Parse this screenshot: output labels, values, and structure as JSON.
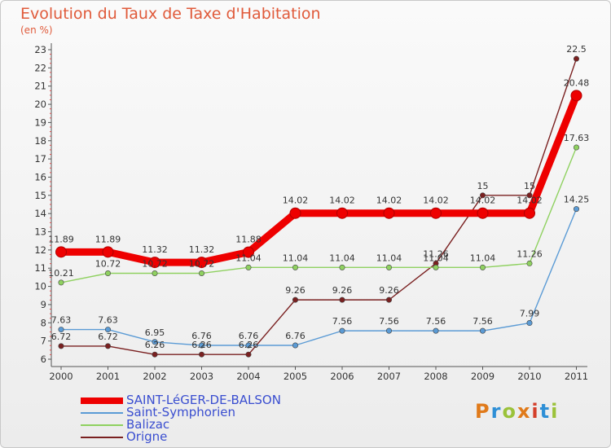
{
  "header": {
    "title": "Evolution du Taux de Taxe d'Habitation",
    "unit": "(en %)"
  },
  "logo": {
    "text": "Proxiti",
    "colors": [
      "#e07a1a",
      "#2e8fd6",
      "#9bc23a",
      "#e07a1a",
      "#d43f2a",
      "#2e8fd6",
      "#9bc23a"
    ]
  },
  "chart_data": {
    "type": "line",
    "title": "Evolution du Taux de Taxe d'Habitation",
    "ylabel": "(en %)",
    "xlabel": "",
    "x": [
      "2000",
      "2001",
      "2002",
      "2003",
      "2004",
      "2005",
      "2006",
      "2007",
      "2008",
      "2009",
      "2010",
      "2011"
    ],
    "ylim": [
      6,
      23
    ],
    "yticks": [
      6,
      7,
      8,
      9,
      10,
      11,
      12,
      13,
      14,
      15,
      16,
      17,
      18,
      19,
      20,
      21,
      22,
      23
    ],
    "grid": false,
    "legend": "bottom-left",
    "series": [
      {
        "name": "Origne",
        "color": "#7a2020",
        "highlight": false,
        "values": [
          6.72,
          6.72,
          6.26,
          6.26,
          6.26,
          9.26,
          9.26,
          9.26,
          11.26,
          15,
          15,
          22.5
        ],
        "labels": [
          "6.72",
          "6.72",
          "6.26",
          "6.26",
          "6.26",
          "9.26",
          "9.26",
          "9.26",
          "11.26",
          "15",
          "15",
          "22.5"
        ]
      },
      {
        "name": "Balizac",
        "color": "#8fd160",
        "highlight": false,
        "values": [
          10.21,
          10.72,
          10.72,
          10.72,
          11.04,
          11.04,
          11.04,
          11.04,
          11.04,
          11.04,
          11.26,
          17.63
        ],
        "labels": [
          "10.21",
          "10.72",
          "10.72",
          "10.72",
          "11.04",
          "11.04",
          "11.04",
          "11.04",
          "11.04",
          "11.04",
          "11.26",
          "17.63"
        ]
      },
      {
        "name": "Saint-Symphorien",
        "color": "#5b9bd5",
        "highlight": false,
        "values": [
          7.63,
          7.63,
          6.95,
          6.76,
          6.76,
          6.76,
          7.56,
          7.56,
          7.56,
          7.56,
          7.99,
          14.25
        ],
        "labels": [
          "7.63",
          "7.63",
          "6.95",
          "6.76",
          "6.76",
          "6.76",
          "7.56",
          "7.56",
          "7.56",
          "7.56",
          "7.99",
          "14.25"
        ]
      },
      {
        "name": "SAINT-LéGER-DE-BALSON",
        "color": "#ee0000",
        "highlight": true,
        "values": [
          11.89,
          11.89,
          11.32,
          11.32,
          11.88,
          14.02,
          14.02,
          14.02,
          14.02,
          14.02,
          14.02,
          20.48
        ],
        "labels": [
          "11.89",
          "11.89",
          "11.32",
          "11.32",
          "11.88",
          "14.02",
          "14.02",
          "14.02",
          "14.02",
          "14.02",
          "14.02",
          "20.48"
        ]
      }
    ],
    "legend_order": [
      "SAINT-LéGER-DE-BALSON",
      "Saint-Symphorien",
      "Balizac",
      "Origne"
    ]
  }
}
